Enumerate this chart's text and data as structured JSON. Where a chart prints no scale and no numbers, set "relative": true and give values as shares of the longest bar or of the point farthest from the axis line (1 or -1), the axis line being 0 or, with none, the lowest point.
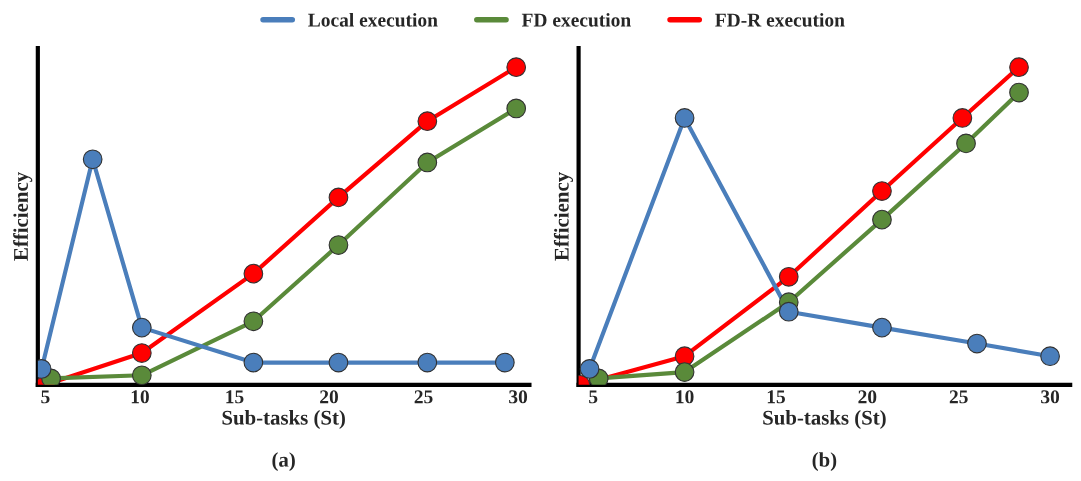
{
  "chart_data": [
    {
      "type": "line",
      "xlabel": "Sub-tasks (St)",
      "ylabel": "Efficiency",
      "annotations": [
        "(a)"
      ],
      "relative": true,
      "xlim": [
        4.6,
        30.6
      ],
      "xticks": [
        5,
        10,
        15,
        20,
        25,
        30
      ],
      "tick_labels": "x",
      "grid": false,
      "legend": "top",
      "marker": "circle",
      "line_style": "solid",
      "series": [
        {
          "name": "Local execution",
          "color": "#4a7ebb",
          "x": [
            4.8,
            7.5,
            10.1,
            16,
            20.5,
            25.2,
            29.3
          ],
          "values": [
            0.05,
            0.71,
            0.18,
            0.07,
            0.07,
            0.07,
            0.07
          ]
        },
        {
          "name": "FD execution",
          "color": "#5a8a3a",
          "x": [
            5.3,
            10.1,
            16,
            20.5,
            25.2,
            29.9
          ],
          "values": [
            0.02,
            0.03,
            0.2,
            0.44,
            0.7,
            0.87
          ]
        },
        {
          "name": "FD-R execution",
          "color": "#ff0000",
          "x": [
            5,
            10.1,
            16,
            20.5,
            25.2,
            29.9
          ],
          "values": [
            0,
            0.1,
            0.35,
            0.59,
            0.83,
            1.0
          ]
        }
      ]
    },
    {
      "type": "line",
      "xlabel": "Sub-tasks (St)",
      "ylabel": "Efficiency",
      "annotations": [
        "(b)"
      ],
      "relative": true,
      "xlim": [
        4.2,
        31.1
      ],
      "xticks": [
        5,
        10,
        15,
        20,
        25,
        30
      ],
      "tick_labels": "x",
      "grid": false,
      "marker": "circle",
      "line_style": "solid",
      "series": [
        {
          "color": "#4a7ebb",
          "x": [
            4.8,
            10,
            15.7,
            20.8,
            26,
            30
          ],
          "values": [
            0.05,
            0.84,
            0.23,
            0.18,
            0.13,
            0.09
          ]
        },
        {
          "color": "#5a8a3a",
          "x": [
            5.3,
            10,
            15.7,
            20.8,
            25.4,
            28.3
          ],
          "values": [
            0.02,
            0.04,
            0.26,
            0.52,
            0.76,
            0.92
          ]
        },
        {
          "color": "#ff0000",
          "x": [
            4.3,
            10,
            15.7,
            20.8,
            25.2,
            28.3
          ],
          "values": [
            0,
            0.09,
            0.34,
            0.61,
            0.84,
            1.0
          ]
        }
      ]
    }
  ]
}
